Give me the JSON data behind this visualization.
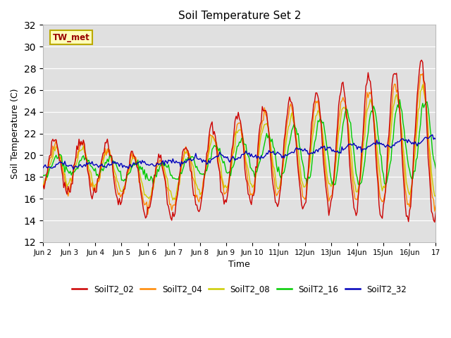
{
  "title": "Soil Temperature Set 2",
  "xlabel": "Time",
  "ylabel": "Soil Temperature (C)",
  "ylim": [
    12,
    32
  ],
  "yticks": [
    12,
    14,
    16,
    18,
    20,
    22,
    24,
    26,
    28,
    30,
    32
  ],
  "xtick_labels": [
    "Jun 2",
    "Jun 3",
    "Jun 4",
    "Jun 5",
    "Jun 6",
    "Jun 7",
    "Jun 8",
    "Jun 9",
    "Jun 10",
    "11Jun",
    "12Jun",
    "13Jun",
    "14Jun",
    "15Jun",
    "16Jun",
    "17"
  ],
  "annotation": "TW_met",
  "line_colors": {
    "SoilT2_02": "#cc0000",
    "SoilT2_04": "#ff8800",
    "SoilT2_08": "#cccc00",
    "SoilT2_16": "#00cc00",
    "SoilT2_32": "#0000bb"
  },
  "bg_color": "#e0e0e0",
  "fig_color": "#ffffff"
}
